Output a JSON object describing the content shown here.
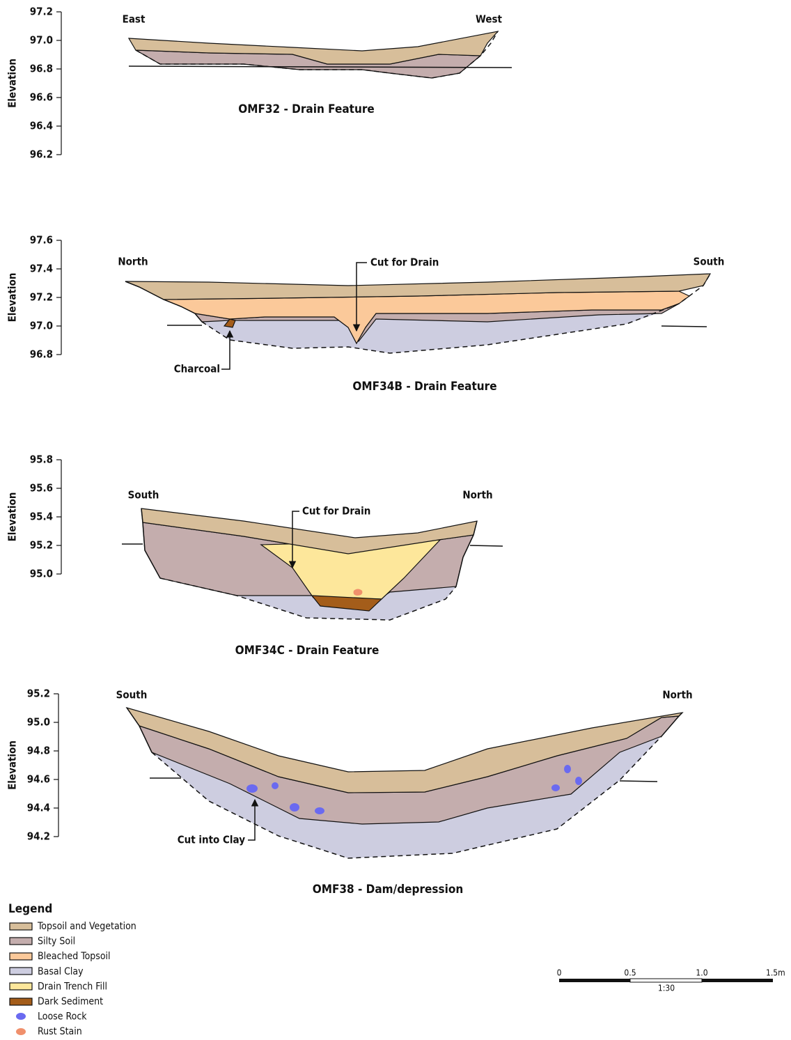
{
  "panels": [
    {
      "title": "OMF32 - Drain Feature",
      "axis_label": "Elevation",
      "ylim": [
        96.2,
        97.2
      ],
      "yticks": [
        97.2,
        {
          "value": 97.0,
          "label": "97.0"
        },
        96.8,
        96.6,
        96.4,
        96.2
      ],
      "directions": [
        "East",
        "West"
      ],
      "annotations": []
    },
    {
      "title": "OMF34B - Drain Feature",
      "axis_label": "Elevation",
      "ylim": [
        96.8,
        97.6
      ],
      "yticks": [
        97.6,
        97.4,
        97.2,
        {
          "value": 97.0,
          "label": "97.0"
        },
        96.8
      ],
      "directions": [
        "North",
        "South"
      ],
      "annotations": [
        "Cut for Drain",
        "Charcoal"
      ]
    },
    {
      "title": "OMF34C - Drain Feature",
      "axis_label": "Elevation",
      "ylim": [
        95.0,
        95.8
      ],
      "yticks": [
        95.8,
        95.6,
        95.4,
        95.2,
        {
          "value": 95.0,
          "label": "95.0"
        }
      ],
      "directions": [
        "South",
        "North"
      ],
      "annotations": [
        "Cut for Drain"
      ]
    },
    {
      "title": "OMF38 - Dam/depression",
      "axis_label": "Elevation",
      "ylim": [
        94.2,
        95.2
      ],
      "yticks": [
        95.2,
        {
          "value": 95.0,
          "label": "95.0"
        },
        94.8,
        94.6,
        94.4,
        94.2
      ],
      "directions": [
        "South",
        "North"
      ],
      "annotations": [
        "Cut into Clay"
      ]
    }
  ],
  "legend": {
    "title": "Legend",
    "items": [
      "Topsoil and Vegetation",
      "Silty Soil",
      "Bleached Topsoil",
      "Basal Clay",
      "Drain Trench Fill",
      "Dark Sediment",
      "Loose Rock",
      "Rust Stain"
    ]
  },
  "scale_bar": {
    "labels": [
      "0",
      "0.5",
      "1.0",
      "1.5m"
    ],
    "ratio": "1:30"
  }
}
